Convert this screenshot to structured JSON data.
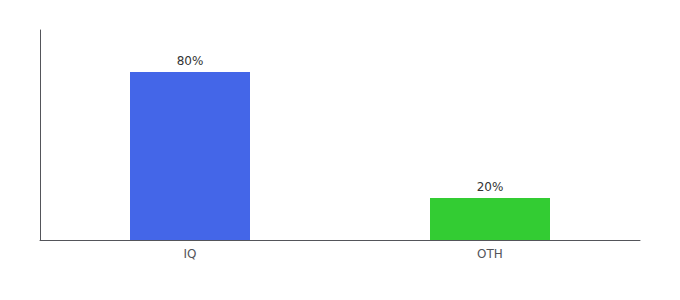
{
  "chart_data": {
    "type": "bar",
    "categories": [
      "IQ",
      "OTH"
    ],
    "values": [
      80,
      20
    ],
    "value_labels": [
      "80%",
      "20%"
    ],
    "colors": [
      "#4466E8",
      "#33CC33"
    ],
    "ylim": [
      0,
      100
    ],
    "grid": false,
    "data_labels": true,
    "tick_labels": "x"
  }
}
